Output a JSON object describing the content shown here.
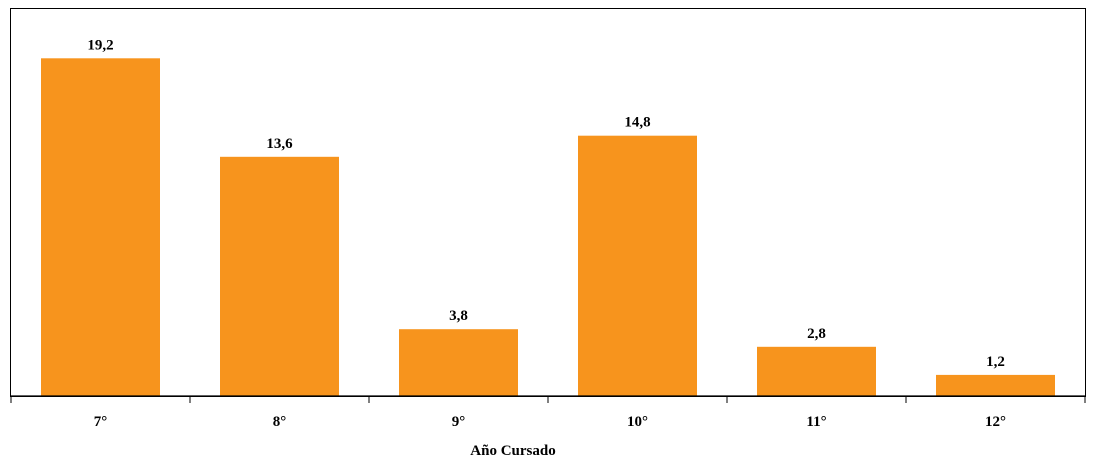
{
  "chart_data": {
    "type": "bar",
    "categories": [
      "7°",
      "8°",
      "9°",
      "10°",
      "11°",
      "12°"
    ],
    "values": [
      19.2,
      13.6,
      3.8,
      14.8,
      2.8,
      1.2
    ],
    "data_labels": [
      "19,2",
      "13,6",
      "3,8",
      "14,8",
      "2,8",
      "1,2"
    ],
    "title": "",
    "xlabel": "Año Cursado",
    "ylabel": "",
    "ylim": [
      0,
      20.3
    ],
    "grid": false,
    "legend": "none",
    "bar_color": "#F7941D"
  }
}
